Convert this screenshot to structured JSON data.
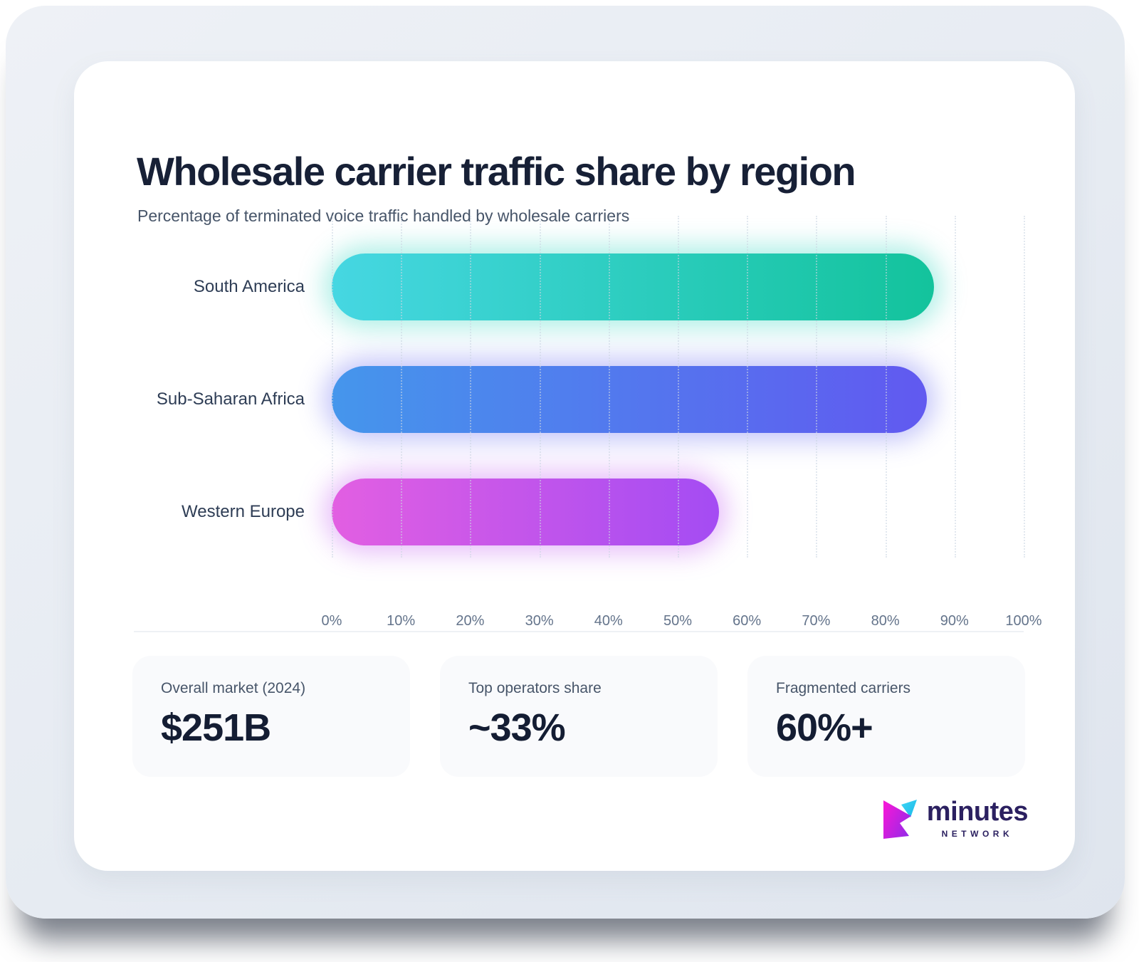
{
  "header": {
    "title": "Wholesale carrier traffic share by region",
    "subtitle": "Percentage of terminated voice traffic handled by wholesale carriers"
  },
  "chart_data": {
    "type": "bar",
    "orientation": "horizontal",
    "title": "Wholesale carrier traffic share by region",
    "categories": [
      "South America",
      "Sub-Saharan Africa",
      "Western Europe"
    ],
    "values": [
      87,
      86,
      56
    ],
    "unit": "%",
    "xlim": [
      0,
      100
    ],
    "x_ticks": [
      "0%",
      "10%",
      "20%",
      "30%",
      "40%",
      "50%",
      "60%",
      "70%",
      "80%",
      "90%",
      "100%"
    ],
    "grid": "vertical-dotted",
    "legend": "none",
    "bar_colors": [
      {
        "from": "#46d7e2",
        "to": "#13c39c",
        "glow": "rgba(45,212,191,0.40)"
      },
      {
        "from": "#4596ec",
        "to": "#6159f0",
        "glow": "rgba(99,102,241,0.40)"
      },
      {
        "from": "#e25fe2",
        "to": "#a44cf3",
        "glow": "rgba(192,85,240,0.40)"
      }
    ]
  },
  "stats": [
    {
      "label": "Overall market (2024)",
      "value": "$251B"
    },
    {
      "label": "Top operators share",
      "value": "~33%"
    },
    {
      "label": "Fragmented carriers",
      "value": "60%+"
    }
  ],
  "logo": {
    "name": "minutes",
    "sub": "NETWORK",
    "colors": {
      "magenta": "#ef18d4",
      "purple": "#8f2be8",
      "cyan": "#2cc8f2",
      "navy": "#2b2060"
    }
  }
}
